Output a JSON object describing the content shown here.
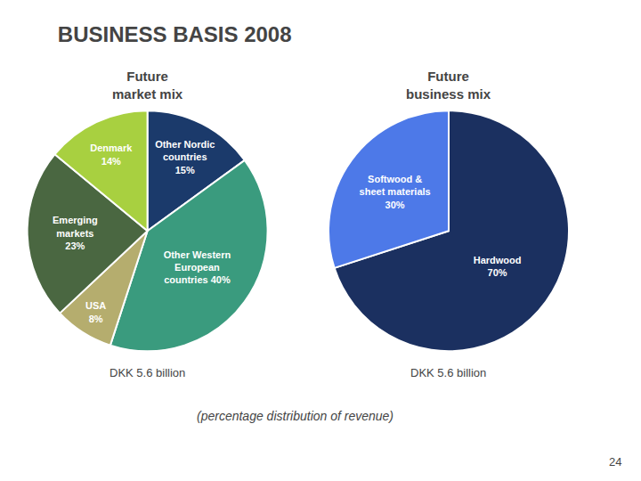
{
  "title": "BUSINESS BASIS 2008",
  "annotations": [
    "(percentage distribution of revenue)",
    "24"
  ],
  "chart_data": [
    {
      "type": "pie",
      "title": "Future\nmarket mix",
      "values": [
        15,
        40,
        8,
        23,
        14
      ],
      "value_labels": [
        "Other Nordic\ncountries\n15%",
        "Other Western\nEuropean\ncountries 40%",
        "USA\n8%",
        "Emerging\nmarkets\n23%",
        "Denmark\n14%"
      ],
      "colors": [
        "#1b3a6b",
        "#3a9b7e",
        "#b5ad6e",
        "#4a6741",
        "#a8d040"
      ],
      "data_labels": true,
      "annotations": [
        "DKK 5.6 billion"
      ]
    },
    {
      "type": "pie",
      "title": "Future\nbusiness mix",
      "values": [
        70,
        30
      ],
      "value_labels": [
        "Hardwood\n70%",
        "Softwood &\nsheet materials\n30%"
      ],
      "colors": [
        "#1b3060",
        "#4d79e8"
      ],
      "data_labels": true,
      "annotations": [
        "DKK 5.6 billion"
      ]
    }
  ]
}
